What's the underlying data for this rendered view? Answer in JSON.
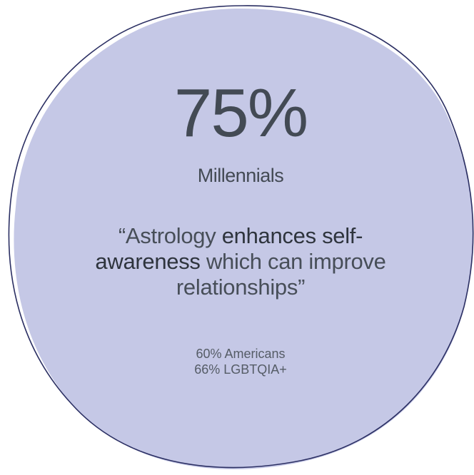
{
  "stat": {
    "value": "75%",
    "group": "Millennials"
  },
  "quote": {
    "open_mark": "“",
    "part1": "Astrology ",
    "emphasis_line1": "enhances self-",
    "emphasis_line2": "awareness",
    "part2": " which can improve relationships",
    "close_mark": "”"
  },
  "sub_stats": [
    "60% Americans",
    "66% LGBTQIA+"
  ],
  "colors": {
    "blob_fill": "#c5c8e6",
    "blob_outline": "#2b2f63",
    "text_dark": "#434a54"
  }
}
